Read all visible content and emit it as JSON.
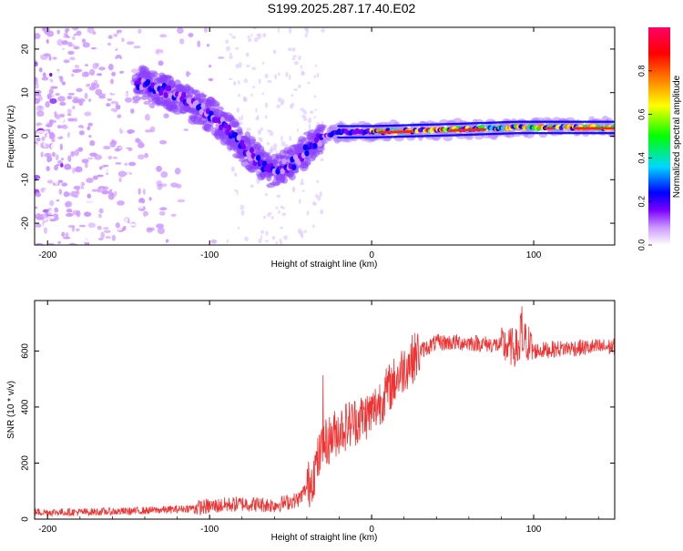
{
  "title": "S199.2025.287.17.40.E02",
  "chart_data": [
    {
      "type": "heatmap",
      "name": "spectrogram",
      "xlabel": "Height of straight line (km)",
      "ylabel": "Frequency (Hz)",
      "xlim": [
        -208,
        150
      ],
      "ylim": [
        -25,
        25
      ],
      "xticks": [
        -200,
        -100,
        0,
        100
      ],
      "yticks": [
        -20,
        -10,
        0,
        10,
        20
      ],
      "ridge": [
        [
          -140,
          12
        ],
        [
          -130,
          11
        ],
        [
          -120,
          9
        ],
        [
          -110,
          7
        ],
        [
          -100,
          5
        ],
        [
          -90,
          2
        ],
        [
          -80,
          -2
        ],
        [
          -70,
          -6
        ],
        [
          -62,
          -8
        ],
        [
          -55,
          -7
        ],
        [
          -48,
          -6
        ],
        [
          -40,
          -3
        ],
        [
          -30,
          0
        ],
        [
          -20,
          1
        ],
        [
          0,
          1
        ],
        [
          50,
          1.5
        ],
        [
          90,
          2
        ],
        [
          150,
          2
        ]
      ],
      "colorbar": {
        "label": "Normalized spectral amplitude",
        "range": [
          0.0,
          1.0
        ],
        "ticks": [
          0.0,
          0.2,
          0.4,
          0.6,
          0.8
        ],
        "colors": [
          "#ffffff",
          "#cc99ff",
          "#7a00ff",
          "#0000ff",
          "#00d8ff",
          "#00ff00",
          "#ffff00",
          "#ff8000",
          "#ff0000",
          "#ff0066"
        ]
      }
    },
    {
      "type": "line",
      "name": "snr",
      "xlabel": "Height of straight line (km)",
      "ylabel": "SNR (10 * v/v)",
      "xlim": [
        -208,
        150
      ],
      "ylim": [
        0,
        780
      ],
      "xticks": [
        -200,
        -100,
        0,
        100
      ],
      "yticks": [
        0,
        200,
        400,
        600
      ],
      "color": "#ee3333",
      "series": [
        {
          "name": "SNR",
          "x": [
            -208,
            -180,
            -150,
            -120,
            -100,
            -80,
            -60,
            -45,
            -38,
            -30,
            -20,
            -10,
            0,
            10,
            20,
            30,
            40,
            60,
            80,
            90,
            95,
            100,
            120,
            150
          ],
          "y": [
            25,
            25,
            28,
            35,
            45,
            55,
            50,
            70,
            130,
            260,
            320,
            350,
            380,
            460,
            540,
            600,
            630,
            630,
            620,
            610,
            640,
            600,
            610,
            615
          ]
        }
      ]
    }
  ]
}
